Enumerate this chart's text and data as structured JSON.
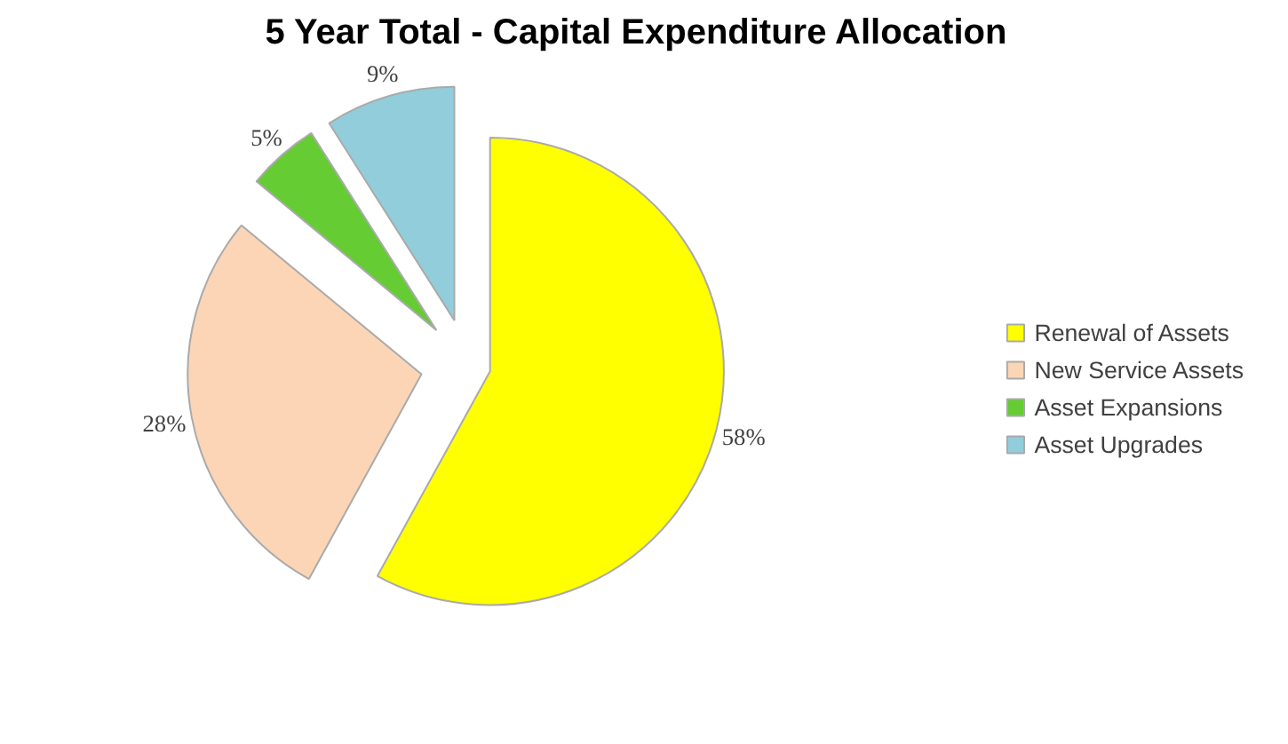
{
  "chart_data": {
    "type": "pie",
    "title": "5 Year Total - Capital Expenditure Allocation",
    "categories": [
      "Renewal of Assets",
      "New Service Assets",
      "Asset Expansions",
      "Asset Upgrades"
    ],
    "values": [
      58,
      28,
      5,
      9
    ],
    "colors": [
      "#ffff00",
      "#fbd5b5",
      "#66cc33",
      "#92cddc"
    ],
    "value_labels": [
      "58%",
      "28%",
      "5%",
      "9%"
    ],
    "legend": "right"
  }
}
